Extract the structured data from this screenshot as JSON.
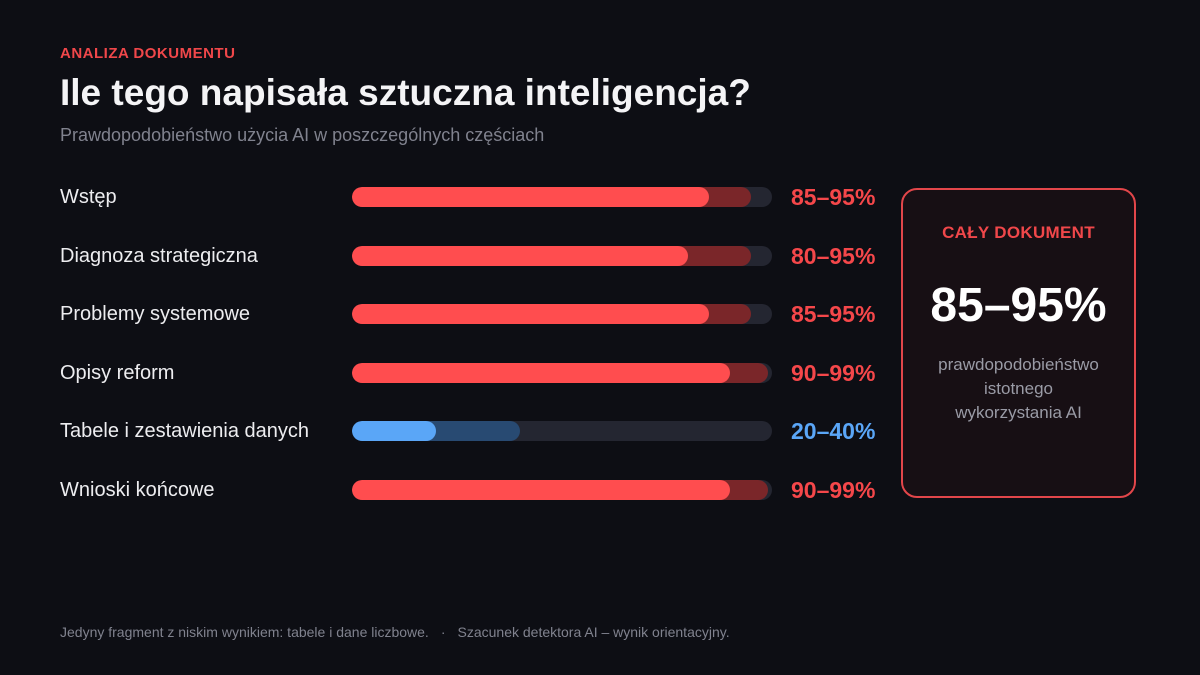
{
  "header": {
    "eyebrow": "ANALIZA DOKUMENTU",
    "title": "Ile tego napisała sztuczna inteligencja?",
    "subtitle": "Prawdopodobieństwo użycia AI w poszczególnych częściach"
  },
  "chart_data": {
    "type": "bar",
    "title": "Ile tego napisała sztuczna inteligencja?",
    "subtitle": "Prawdopodobieństwo użycia AI w poszczególnych częściach",
    "xlim": [
      0,
      100
    ],
    "grid": false,
    "categories": [
      "Wstęp",
      "Diagnoza strategiczna",
      "Problemy systemowe",
      "Opisy reform",
      "Tabele i zestawienia danych",
      "Wnioski końcowe"
    ],
    "series": [
      {
        "name": "",
        "values_low": [
          85,
          80,
          85,
          90,
          20,
          90
        ],
        "values_high": [
          95,
          95,
          95,
          99,
          40,
          99
        ]
      }
    ],
    "labels": [
      "85–95%",
      "80–95%",
      "85–95%",
      "90–99%",
      "20–40%",
      "90–99%"
    ],
    "colors": [
      "#ff4d4f",
      "#ff4d4f",
      "#ff4d4f",
      "#ff4d4f",
      "#5aa6f7",
      "#ff4d4f"
    ]
  },
  "summary": {
    "label": "CAŁY DOKUMENT",
    "value": "85–95%",
    "description_lines": [
      "prawdopodobieństwo",
      "istotnego",
      "wykorzystania AI"
    ]
  },
  "footer": {
    "note_1": "Jedyny fragment z niskim wynikiem: tabele i dane liczbowe.",
    "separator": "·",
    "note_2": "Szacunek detektora AI – wynik orientacyjny."
  },
  "colors": {
    "accent_red": "#ff4d4f",
    "accent_blue": "#5aa6f7",
    "background": "#0d0e14"
  }
}
